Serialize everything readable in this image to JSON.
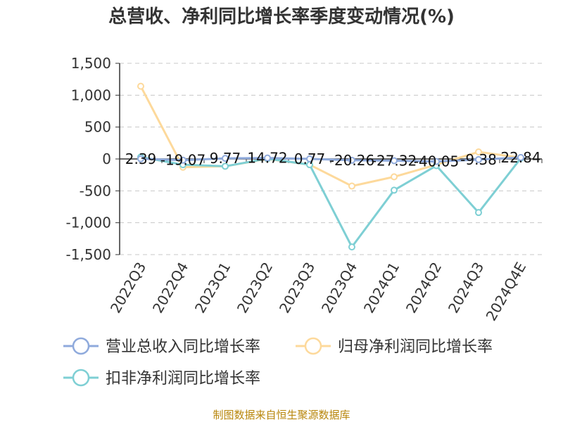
{
  "title": "总营收、净利同比增长率季度变动情况(%)",
  "source": "制图数据来自恒生聚源数据库",
  "chart_data": {
    "type": "line",
    "categories": [
      "2022Q3",
      "2022Q4",
      "2023Q1",
      "2023Q2",
      "2023Q3",
      "2023Q4",
      "2024Q1",
      "2024Q2",
      "2024Q3",
      "2024Q4E"
    ],
    "ylim": [
      -1500,
      1500
    ],
    "yticks": [
      1500,
      1000,
      500,
      0,
      -500,
      -1000,
      -1500
    ],
    "ytick_labels": [
      "1,500",
      "1,000",
      "500",
      "0",
      "-500",
      "-1,000",
      "-1,500"
    ],
    "grid": true,
    "legend_position": "bottom",
    "series": [
      {
        "name": "营业总收入同比增长率",
        "color": "#8faadc",
        "values": [
          2.39,
          -19.07,
          9.77,
          14.72,
          0.77,
          -20.26,
          -27.32,
          -40.05,
          -9.38,
          22.84
        ],
        "labels": [
          "2.39",
          "-19.07",
          "9.77",
          "14.72",
          "0.77",
          "-20.26",
          "-27.32",
          "-40.05",
          "-9.38",
          "22.84"
        ]
      },
      {
        "name": "归母净利润同比增长率",
        "color": "#fdd99b",
        "values": [
          1140,
          -130,
          -115,
          0,
          -90,
          -425,
          -280,
          -90,
          110,
          20
        ]
      },
      {
        "name": "扣非净利润同比增长率",
        "color": "#7ecfd4",
        "values": [
          30,
          -90,
          -115,
          5,
          -90,
          -1380,
          -490,
          -105,
          -840,
          10
        ]
      }
    ]
  }
}
